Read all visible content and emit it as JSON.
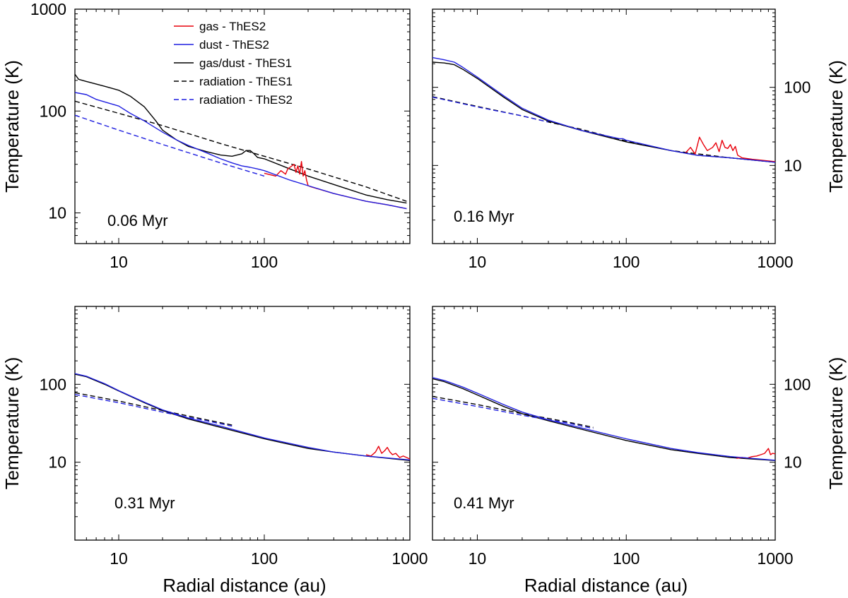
{
  "figure": {
    "xlabel": "Radial distance (au)",
    "ylabel": "Temperature (K)"
  },
  "legend": [
    {
      "label": "gas - ThES2",
      "color": "#e8000b",
      "dash": "solid"
    },
    {
      "label": "dust - ThES2",
      "color": "#1f1fe0",
      "dash": "solid"
    },
    {
      "label": "gas/dust - ThES1",
      "color": "#000000",
      "dash": "solid"
    },
    {
      "label": "radiation - ThES1",
      "color": "#000000",
      "dash": "dashed"
    },
    {
      "label": "radiation - ThES2",
      "color": "#1f1fe0",
      "dash": "dashed"
    }
  ],
  "chart_data": [
    {
      "type": "line",
      "panel": "top-left",
      "time_label": "0.06 Myr",
      "xscale": "log",
      "yscale": "log",
      "xlim": [
        5,
        1000
      ],
      "ylim": [
        5,
        1000
      ],
      "xticks": [
        "10",
        "100"
      ],
      "yticks": [
        "10",
        "100",
        "1000"
      ],
      "ylabel_side": "left",
      "show_xlabel": false,
      "series": [
        {
          "name": "gas/dust - ThES1",
          "color": "#000000",
          "dash": "solid",
          "x": [
            5,
            5.3,
            6,
            8,
            10,
            12,
            15,
            18,
            20,
            25,
            30,
            40,
            50,
            60,
            70,
            75,
            80,
            85,
            90,
            100,
            150,
            200,
            300,
            500,
            700,
            950
          ],
          "y": [
            230,
            205,
            195,
            175,
            160,
            140,
            110,
            80,
            65,
            52,
            45,
            40,
            37,
            36,
            38,
            41,
            41,
            38,
            35,
            34,
            27,
            23,
            19,
            15,
            13.5,
            12.5
          ]
        },
        {
          "name": "radiation - ThES1",
          "color": "#000000",
          "dash": "dashed",
          "x": [
            5,
            10,
            20,
            50,
            100,
            200,
            500,
            950
          ],
          "y": [
            125,
            95,
            72,
            48,
            36,
            27,
            18,
            13
          ]
        },
        {
          "name": "gas - ThES2",
          "color": "#e8000b",
          "dash": "solid",
          "x": [
            100,
            120,
            130,
            140,
            145,
            150,
            160,
            165,
            170,
            175,
            180,
            185,
            190,
            195,
            200,
            210,
            300,
            500,
            700,
            950
          ],
          "y": [
            24.5,
            23,
            26,
            24,
            27,
            28,
            30,
            25,
            29,
            24,
            32,
            23,
            26,
            21,
            18.5,
            18,
            15.5,
            13,
            12,
            11
          ]
        },
        {
          "name": "dust - ThES2",
          "color": "#1f1fe0",
          "dash": "solid",
          "x": [
            5,
            6,
            7,
            10,
            12,
            15,
            20,
            25,
            30,
            40,
            50,
            60,
            70,
            80,
            90,
            100,
            150,
            200,
            300,
            500,
            700,
            950
          ],
          "y": [
            152,
            145,
            130,
            112,
            95,
            80,
            62,
            52,
            46,
            39,
            34,
            31,
            29,
            28,
            27,
            26,
            21,
            18.5,
            15.5,
            13,
            12,
            11
          ]
        },
        {
          "name": "radiation - ThES2",
          "color": "#1f1fe0",
          "dash": "dashed",
          "x": [
            5,
            10,
            20,
            50,
            100
          ],
          "y": [
            91,
            65,
            47,
            31,
            23
          ]
        }
      ]
    },
    {
      "type": "line",
      "panel": "top-right",
      "time_label": "0.16 Myr",
      "xscale": "log",
      "yscale": "log",
      "xlim": [
        5,
        1000
      ],
      "ylim": [
        1,
        1000
      ],
      "xticks": [
        "10",
        "100",
        "1000"
      ],
      "yticks": [
        "10",
        "100"
      ],
      "ylabel_side": "right",
      "show_xlabel": false,
      "series": [
        {
          "name": "gas/dust - ThES1",
          "color": "#000000",
          "dash": "solid",
          "x": [
            5,
            6,
            7,
            8,
            10,
            15,
            20,
            30,
            50,
            100,
            200,
            300,
            500,
            1000
          ],
          "y": [
            210,
            205,
            195,
            170,
            130,
            75,
            52,
            37,
            28,
            20,
            15.5,
            13.5,
            12.5,
            11
          ]
        },
        {
          "name": "radiation - ThES1",
          "color": "#000000",
          "dash": "dashed",
          "x": [
            5,
            10,
            20,
            30,
            50,
            100,
            200,
            500,
            1000
          ],
          "y": [
            76,
            57,
            43,
            36,
            29,
            20.5,
            15.5,
            12.5,
            11
          ]
        },
        {
          "name": "gas - ThES2",
          "color": "#e8000b",
          "dash": "solid",
          "x": [
            250,
            270,
            290,
            310,
            330,
            350,
            380,
            400,
            420,
            440,
            460,
            480,
            500,
            520,
            540,
            560,
            580,
            600,
            700,
            1000
          ],
          "y": [
            14.5,
            17,
            14,
            23,
            18.5,
            15.5,
            17,
            19.5,
            15,
            21,
            17,
            16.5,
            18.5,
            15.5,
            17.5,
            13.5,
            13,
            12.5,
            12,
            11.2
          ]
        },
        {
          "name": "dust - ThES2",
          "color": "#1f1fe0",
          "dash": "solid",
          "x": [
            5,
            6,
            7,
            8,
            10,
            15,
            20,
            30,
            50,
            90,
            95,
            100,
            200,
            300,
            500,
            1000
          ],
          "y": [
            240,
            225,
            210,
            180,
            135,
            78,
            54,
            38,
            28,
            22,
            22,
            21,
            15.5,
            13.5,
            12.5,
            11
          ]
        },
        {
          "name": "radiation - ThES2",
          "color": "#1f1fe0",
          "dash": "dashed",
          "x": [
            5,
            10,
            20,
            30
          ],
          "y": [
            75,
            56,
            43,
            36
          ]
        }
      ]
    },
    {
      "type": "line",
      "panel": "bottom-left",
      "time_label": "0.31 Myr",
      "xscale": "log",
      "yscale": "log",
      "xlim": [
        5,
        1000
      ],
      "ylim": [
        1,
        1000
      ],
      "xticks": [
        "10",
        "100",
        "1000"
      ],
      "yticks": [
        "10",
        "100"
      ],
      "ylabel_side": "left",
      "show_xlabel": true,
      "series": [
        {
          "name": "gas/dust - ThES1",
          "color": "#000000",
          "dash": "solid",
          "x": [
            5,
            6,
            8,
            10,
            15,
            20,
            30,
            50,
            100,
            200,
            300,
            500,
            1000
          ],
          "y": [
            135,
            125,
            100,
            82,
            58,
            46,
            36,
            28,
            20,
            15,
            13.5,
            12,
            10.5
          ]
        },
        {
          "name": "radiation - ThES1",
          "color": "#000000",
          "dash": "dashed",
          "x": [
            5,
            10,
            20,
            40,
            60
          ],
          "y": [
            78,
            61,
            46,
            35,
            30
          ]
        },
        {
          "name": "gas - ThES2",
          "color": "#e8000b",
          "dash": "solid",
          "x": [
            500,
            540,
            580,
            610,
            640,
            670,
            700,
            730,
            760,
            800,
            850,
            900,
            950,
            1000
          ],
          "y": [
            12.5,
            12,
            13.5,
            16,
            13,
            14,
            15.5,
            13.5,
            12.5,
            13,
            11.5,
            12,
            11.5,
            11
          ]
        },
        {
          "name": "dust - ThES2",
          "color": "#1f1fe0",
          "dash": "solid",
          "x": [
            5,
            6,
            8,
            10,
            15,
            20,
            30,
            50,
            100,
            200,
            300,
            500,
            1000
          ],
          "y": [
            137,
            127,
            102,
            83,
            59,
            47,
            37,
            29,
            20.5,
            15.5,
            13.5,
            12,
            10.7
          ]
        },
        {
          "name": "radiation - ThES2",
          "color": "#1f1fe0",
          "dash": "dashed",
          "x": [
            5,
            10,
            20,
            40,
            60
          ],
          "y": [
            74,
            58,
            44,
            34,
            29
          ]
        }
      ]
    },
    {
      "type": "line",
      "panel": "bottom-right",
      "time_label": "0.41 Myr",
      "xscale": "log",
      "yscale": "log",
      "xlim": [
        5,
        1000
      ],
      "ylim": [
        1,
        1000
      ],
      "xticks": [
        "10",
        "100",
        "1000"
      ],
      "yticks": [
        "10",
        "100"
      ],
      "ylabel_side": "right",
      "show_xlabel": true,
      "series": [
        {
          "name": "gas/dust - ThES1",
          "color": "#000000",
          "dash": "solid",
          "x": [
            5,
            6,
            8,
            10,
            15,
            20,
            30,
            50,
            100,
            200,
            300,
            500,
            1000
          ],
          "y": [
            118,
            108,
            88,
            73,
            52,
            42,
            34,
            26.5,
            19,
            14.5,
            13,
            11.5,
            10.5
          ]
        },
        {
          "name": "radiation - ThES1",
          "color": "#000000",
          "dash": "dashed",
          "x": [
            5,
            10,
            20,
            40,
            60
          ],
          "y": [
            70,
            55,
            42,
            33,
            28
          ]
        },
        {
          "name": "gas - ThES2",
          "color": "#e8000b",
          "dash": "solid",
          "x": [
            550,
            600,
            650,
            700,
            750,
            800,
            850,
            900,
            930,
            960,
            1000
          ],
          "y": [
            11.2,
            11.5,
            11.3,
            11.8,
            12,
            12.5,
            13,
            15,
            12.5,
            13,
            12.8
          ]
        },
        {
          "name": "dust - ThES2",
          "color": "#1f1fe0",
          "dash": "solid",
          "x": [
            5,
            6,
            8,
            10,
            15,
            20,
            30,
            50,
            100,
            200,
            300,
            500,
            1000
          ],
          "y": [
            122,
            112,
            92,
            77,
            55,
            44,
            35,
            27.5,
            20,
            15,
            13.3,
            11.8,
            10.6
          ]
        },
        {
          "name": "radiation - ThES2",
          "color": "#1f1fe0",
          "dash": "dashed",
          "x": [
            5,
            10,
            20,
            40,
            60
          ],
          "y": [
            66,
            52,
            40,
            32,
            27
          ]
        }
      ]
    }
  ]
}
